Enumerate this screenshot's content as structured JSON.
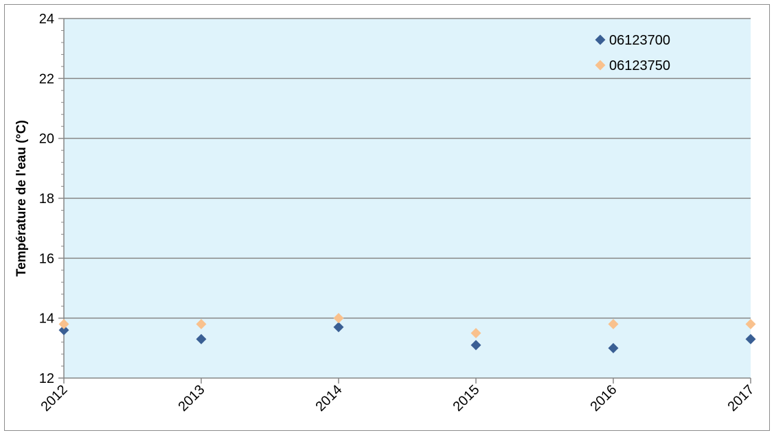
{
  "chart_data": {
    "type": "scatter",
    "title": "",
    "xlabel": "",
    "ylabel": "Température de l'eau (°C)",
    "x_categories": [
      "2012",
      "2013",
      "2014",
      "2015",
      "2016",
      "2017"
    ],
    "ylim": [
      12,
      24
    ],
    "y_ticks": [
      "12",
      "14",
      "16",
      "18",
      "20",
      "22",
      "24"
    ],
    "grid": "horizontal major lines",
    "legend_position": "top-right",
    "plot_background": "#dff3fb",
    "series": [
      {
        "name": "06123700",
        "marker": "diamond",
        "color": "#3a5f94",
        "x": [
          "2012",
          "2013",
          "2014",
          "2015",
          "2016",
          "2017"
        ],
        "y": [
          13.6,
          13.3,
          13.7,
          13.1,
          13.0,
          13.3
        ]
      },
      {
        "name": "06123750",
        "marker": "diamond",
        "color": "#f9c18d",
        "x": [
          "2012",
          "2013",
          "2014",
          "2015",
          "2016",
          "2017"
        ],
        "y": [
          13.8,
          13.8,
          14.0,
          13.5,
          13.8,
          13.8
        ]
      }
    ]
  }
}
